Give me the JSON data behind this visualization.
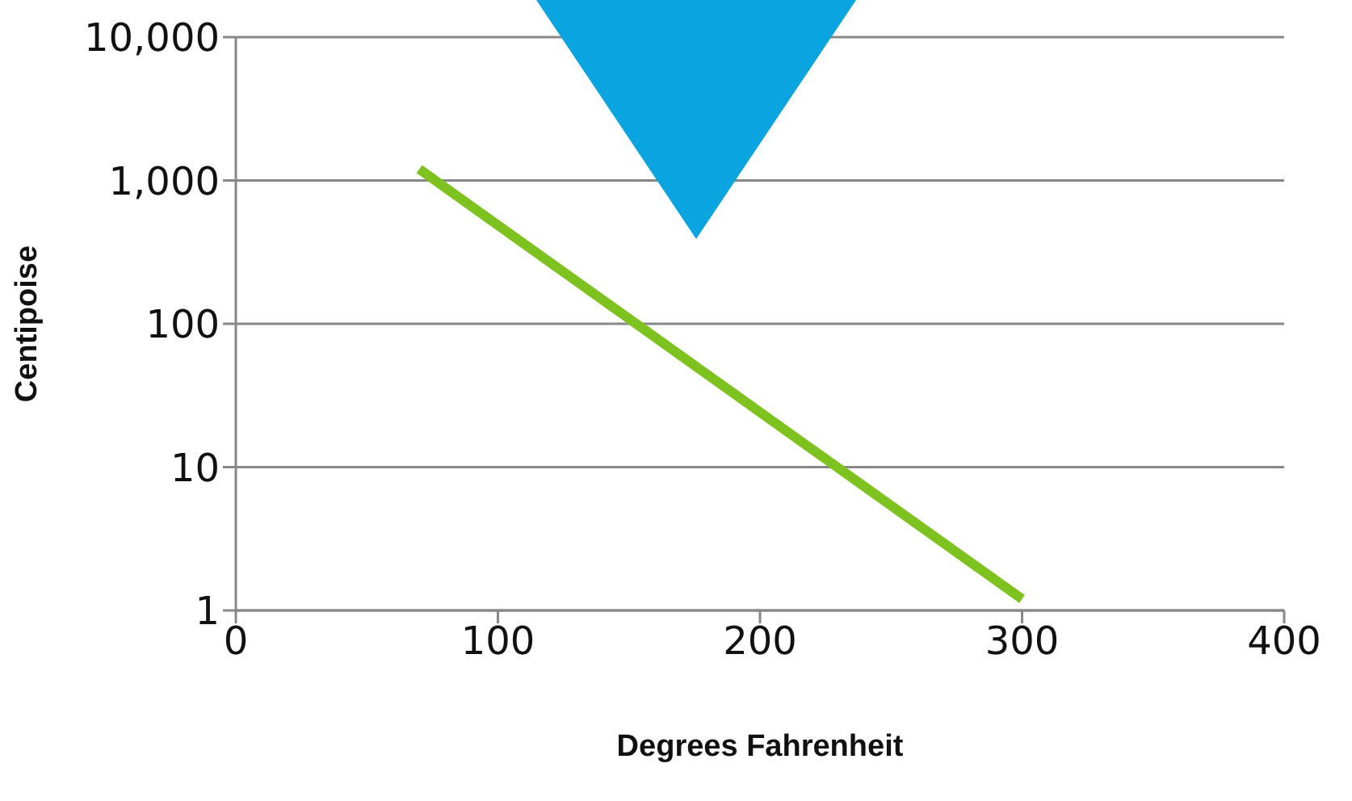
{
  "chart_data": {
    "type": "line",
    "xlabel": "Degrees Fahrenheit",
    "ylabel": "Centipoise",
    "series": [
      {
        "color": "#7dc21e",
        "x": [
          70,
          300
        ],
        "values": [
          1200,
          1.2
        ]
      }
    ],
    "xlim": [
      0,
      400
    ],
    "xticks": [
      0,
      100,
      200,
      300,
      400
    ],
    "ylim": [
      1,
      10000
    ],
    "yticks": [
      1,
      10,
      100,
      {
        "value": 1000,
        "label": "1,000"
      },
      {
        "value": 10000,
        "label": "10,000"
      }
    ],
    "log": "y",
    "grid": "y",
    "marker": "none",
    "line_style": "solid"
  }
}
